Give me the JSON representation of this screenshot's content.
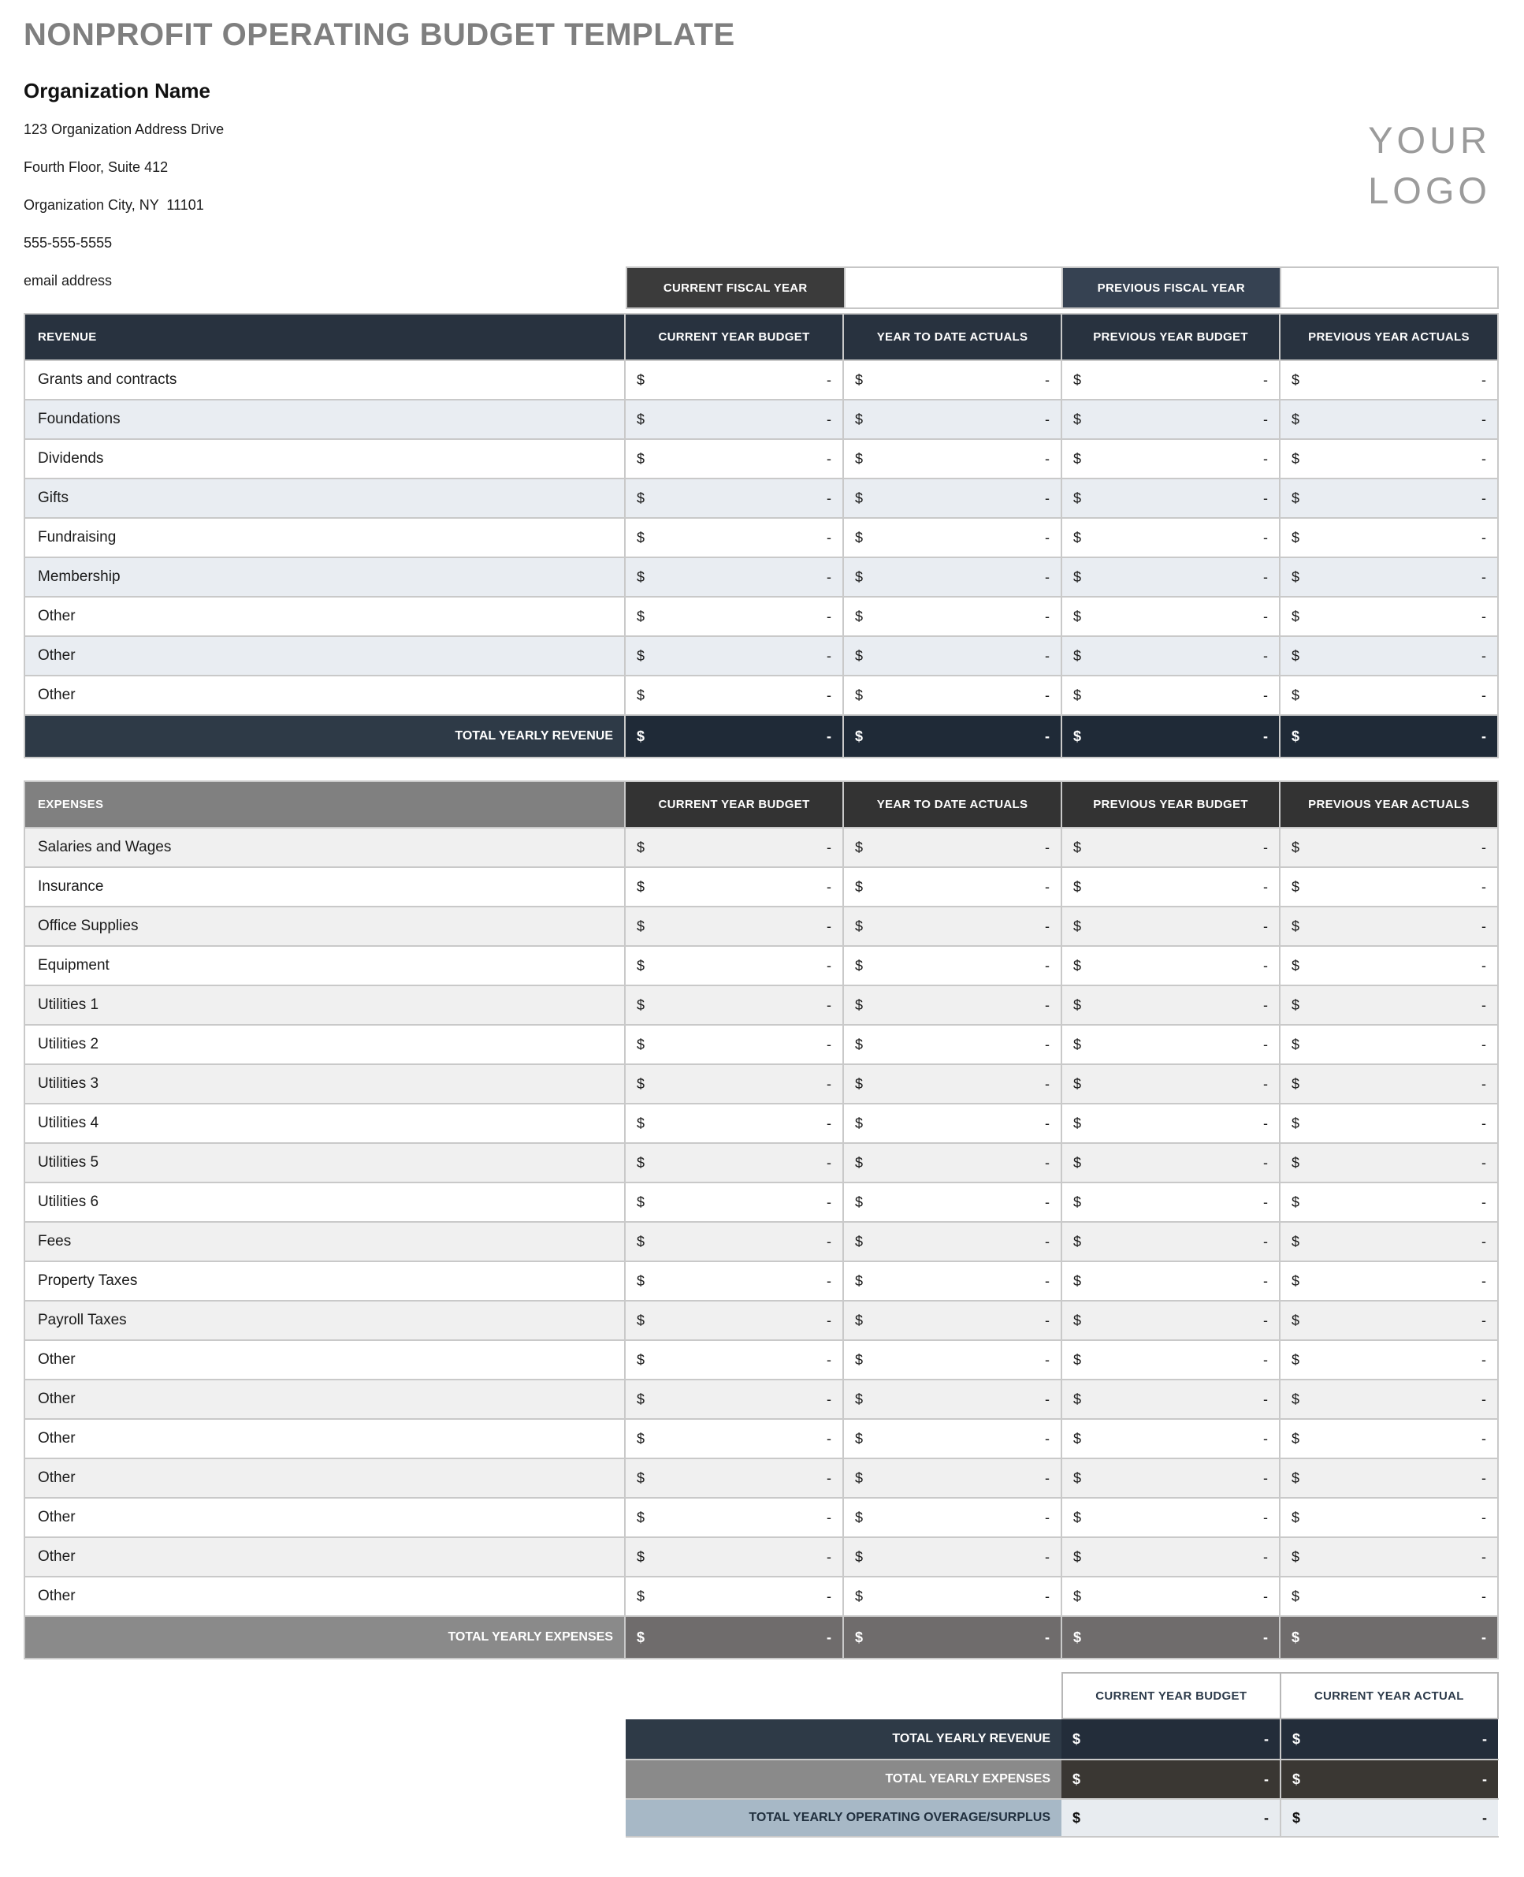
{
  "page_title": "NONPROFIT OPERATING BUDGET TEMPLATE",
  "logo": {
    "lines": [
      "YOUR",
      "LOGO"
    ]
  },
  "organization": {
    "name": "Organization Name",
    "address_lines": [
      "123 Organization Address Drive",
      "Fourth Floor, Suite 412",
      "Organization City, NY  11101",
      "555-555-5555",
      "email address"
    ]
  },
  "fiscal_year_bar": {
    "current_label": "CURRENT FISCAL YEAR",
    "current_value": "",
    "previous_label": "PREVIOUS FISCAL YEAR",
    "previous_value": ""
  },
  "currency_symbol": "$",
  "revenue_table": {
    "section_label": "REVENUE",
    "columns": [
      "CURRENT YEAR BUDGET",
      "YEAR TO DATE ACTUALS",
      "PREVIOUS YEAR BUDGET",
      "PREVIOUS YEAR ACTUALS"
    ],
    "rows": [
      {
        "label": "Grants and contracts",
        "amounts": [
          "-",
          "-",
          "-",
          "-"
        ]
      },
      {
        "label": "Foundations",
        "amounts": [
          "-",
          "-",
          "-",
          "-"
        ]
      },
      {
        "label": "Dividends",
        "amounts": [
          "-",
          "-",
          "-",
          "-"
        ]
      },
      {
        "label": "Gifts",
        "amounts": [
          "-",
          "-",
          "-",
          "-"
        ]
      },
      {
        "label": "Fundraising",
        "amounts": [
          "-",
          "-",
          "-",
          "-"
        ]
      },
      {
        "label": "Membership",
        "amounts": [
          "-",
          "-",
          "-",
          "-"
        ]
      },
      {
        "label": "Other",
        "amounts": [
          "-",
          "-",
          "-",
          "-"
        ]
      },
      {
        "label": "Other",
        "amounts": [
          "-",
          "-",
          "-",
          "-"
        ]
      },
      {
        "label": "Other",
        "amounts": [
          "-",
          "-",
          "-",
          "-"
        ]
      }
    ],
    "total": {
      "label": "TOTAL YEARLY REVENUE",
      "amounts": [
        "-",
        "-",
        "-",
        "-"
      ]
    }
  },
  "expenses_table": {
    "section_label": "EXPENSES",
    "columns": [
      "CURRENT YEAR BUDGET",
      "YEAR TO DATE ACTUALS",
      "PREVIOUS YEAR BUDGET",
      "PREVIOUS YEAR ACTUALS"
    ],
    "rows": [
      {
        "label": "Salaries and Wages",
        "amounts": [
          "-",
          "-",
          "-",
          "-"
        ]
      },
      {
        "label": "Insurance",
        "amounts": [
          "-",
          "-",
          "-",
          "-"
        ]
      },
      {
        "label": "Office Supplies",
        "amounts": [
          "-",
          "-",
          "-",
          "-"
        ]
      },
      {
        "label": "Equipment",
        "amounts": [
          "-",
          "-",
          "-",
          "-"
        ]
      },
      {
        "label": "Utilities 1",
        "amounts": [
          "-",
          "-",
          "-",
          "-"
        ]
      },
      {
        "label": "Utilities 2",
        "amounts": [
          "-",
          "-",
          "-",
          "-"
        ]
      },
      {
        "label": "Utilities 3",
        "amounts": [
          "-",
          "-",
          "-",
          "-"
        ]
      },
      {
        "label": "Utilities 4",
        "amounts": [
          "-",
          "-",
          "-",
          "-"
        ]
      },
      {
        "label": "Utilities 5",
        "amounts": [
          "-",
          "-",
          "-",
          "-"
        ]
      },
      {
        "label": "Utilities 6",
        "amounts": [
          "-",
          "-",
          "-",
          "-"
        ]
      },
      {
        "label": "Fees",
        "amounts": [
          "-",
          "-",
          "-",
          "-"
        ]
      },
      {
        "label": "Property Taxes",
        "amounts": [
          "-",
          "-",
          "-",
          "-"
        ]
      },
      {
        "label": "Payroll Taxes",
        "amounts": [
          "-",
          "-",
          "-",
          "-"
        ]
      },
      {
        "label": "Other",
        "amounts": [
          "-",
          "-",
          "-",
          "-"
        ]
      },
      {
        "label": "Other",
        "amounts": [
          "-",
          "-",
          "-",
          "-"
        ]
      },
      {
        "label": "Other",
        "amounts": [
          "-",
          "-",
          "-",
          "-"
        ]
      },
      {
        "label": "Other",
        "amounts": [
          "-",
          "-",
          "-",
          "-"
        ]
      },
      {
        "label": "Other",
        "amounts": [
          "-",
          "-",
          "-",
          "-"
        ]
      },
      {
        "label": "Other",
        "amounts": [
          "-",
          "-",
          "-",
          "-"
        ]
      },
      {
        "label": "Other",
        "amounts": [
          "-",
          "-",
          "-",
          "-"
        ]
      }
    ],
    "total": {
      "label": "TOTAL YEARLY EXPENSES",
      "amounts": [
        "-",
        "-",
        "-",
        "-"
      ]
    }
  },
  "summary": {
    "columns": [
      "CURRENT YEAR BUDGET",
      "CURRENT YEAR ACTUAL"
    ],
    "rows": [
      {
        "label": "TOTAL YEARLY REVENUE",
        "style": "revenue",
        "amounts": [
          "-",
          "-"
        ]
      },
      {
        "label": "TOTAL YEARLY EXPENSES",
        "style": "expenses",
        "amounts": [
          "-",
          "-"
        ]
      },
      {
        "label": "TOTAL YEARLY OPERATING OVERAGE/SURPLUS",
        "style": "surplus",
        "amounts": [
          "-",
          "-"
        ]
      }
    ]
  },
  "colors": {
    "title_gray": "#7f7f7f",
    "logo_gray": "#9b9b9b",
    "charcoal_header": "#3b3b3b",
    "slate_header": "#364252",
    "revenue_header_navy": "#28323f",
    "revenue_alt_row": "#e9edf2",
    "revenue_total_label": "#2e3a47",
    "revenue_total_value": "#1f2a37",
    "expenses_header_gray": "#808080",
    "expenses_alt_row": "#f0f0f0",
    "expenses_total_label": "#8a8a8a",
    "expenses_total_value": "#6f6c6c",
    "summary_expenses_value": "#3a3733",
    "surplus_label_blue": "#a7b8c6",
    "surplus_value_bg": "#e8ecf0",
    "grid_border": "#c9c9c9"
  }
}
